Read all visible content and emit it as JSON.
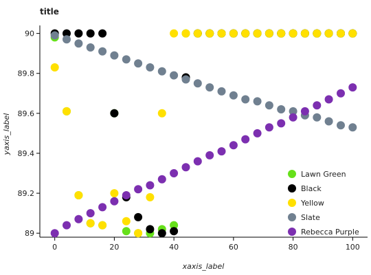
{
  "chart_data": {
    "type": "scatter",
    "title": "title",
    "xlabel": "xaxis_label",
    "ylabel": "yaxis_label",
    "xlim": [
      -5,
      105
    ],
    "ylim": [
      88.98,
      90.04
    ],
    "x_ticks": [
      0,
      20,
      40,
      60,
      80,
      100
    ],
    "x_tick_labels": [
      "0",
      "20",
      "40",
      "60",
      "80",
      "100"
    ],
    "y_ticks": [
      89.0,
      89.2,
      89.4,
      89.6,
      89.8,
      90.0
    ],
    "y_tick_labels": [
      "89",
      "89.2",
      "89.4",
      "89.6",
      "89.8",
      "90"
    ],
    "grid": false,
    "legend_position": "bottom-right",
    "series": [
      {
        "name": "Lawn Green",
        "color": "#66e01a",
        "points": [
          [
            0,
            89.98
          ],
          [
            4,
            89.61
          ],
          [
            8,
            89.19
          ],
          [
            12,
            89.05
          ],
          [
            16,
            89.04
          ],
          [
            20,
            89.6
          ],
          [
            24,
            89.01
          ],
          [
            28,
            89.0
          ],
          [
            32,
            89.0
          ],
          [
            36,
            89.02
          ],
          [
            40,
            89.04
          ],
          [
            44,
            90.0
          ],
          [
            48,
            90.0
          ],
          [
            52,
            90.0
          ],
          [
            56,
            90.0
          ],
          [
            60,
            90.0
          ],
          [
            64,
            90.0
          ],
          [
            68,
            90.0
          ],
          [
            72,
            90.0
          ],
          [
            76,
            90.0
          ],
          [
            80,
            90.0
          ],
          [
            84,
            90.0
          ],
          [
            88,
            90.0
          ],
          [
            92,
            90.0
          ],
          [
            96,
            90.0
          ],
          [
            100,
            90.0
          ]
        ]
      },
      {
        "name": "Black",
        "color": "#000000",
        "points": [
          [
            0,
            90.0
          ],
          [
            4,
            90.0
          ],
          [
            8,
            90.0
          ],
          [
            12,
            90.0
          ],
          [
            16,
            90.0
          ],
          [
            20,
            89.6
          ],
          [
            24,
            89.18
          ],
          [
            28,
            89.08
          ],
          [
            32,
            89.02
          ],
          [
            36,
            89.0
          ],
          [
            40,
            89.01
          ],
          [
            44,
            89.78
          ],
          [
            48,
            90.0
          ],
          [
            52,
            90.0
          ],
          [
            56,
            90.0
          ],
          [
            60,
            90.0
          ],
          [
            64,
            90.0
          ],
          [
            68,
            90.0
          ],
          [
            72,
            90.0
          ],
          [
            76,
            90.0
          ],
          [
            80,
            90.0
          ],
          [
            84,
            90.0
          ],
          [
            88,
            90.0
          ],
          [
            92,
            90.0
          ],
          [
            96,
            90.0
          ],
          [
            100,
            90.0
          ]
        ]
      },
      {
        "name": "Yellow",
        "color": "#ffe000",
        "points": [
          [
            0,
            89.83
          ],
          [
            4,
            89.61
          ],
          [
            8,
            89.19
          ],
          [
            12,
            89.05
          ],
          [
            16,
            89.04
          ],
          [
            20,
            89.2
          ],
          [
            24,
            89.06
          ],
          [
            28,
            89.0
          ],
          [
            32,
            89.18
          ],
          [
            36,
            89.6
          ],
          [
            40,
            90.0
          ],
          [
            44,
            90.0
          ],
          [
            48,
            90.0
          ],
          [
            52,
            90.0
          ],
          [
            56,
            90.0
          ],
          [
            60,
            90.0
          ],
          [
            64,
            90.0
          ],
          [
            68,
            90.0
          ],
          [
            72,
            90.0
          ],
          [
            76,
            90.0
          ],
          [
            80,
            90.0
          ],
          [
            84,
            90.0
          ],
          [
            88,
            90.0
          ],
          [
            92,
            90.0
          ],
          [
            96,
            90.0
          ],
          [
            100,
            90.0
          ]
        ]
      },
      {
        "name": "Slate",
        "color": "#708090",
        "points": [
          [
            0,
            89.99
          ],
          [
            4,
            89.97
          ],
          [
            8,
            89.95
          ],
          [
            12,
            89.93
          ],
          [
            16,
            89.91
          ],
          [
            20,
            89.89
          ],
          [
            24,
            89.87
          ],
          [
            28,
            89.85
          ],
          [
            32,
            89.83
          ],
          [
            36,
            89.81
          ],
          [
            40,
            89.79
          ],
          [
            44,
            89.77
          ],
          [
            48,
            89.75
          ],
          [
            52,
            89.73
          ],
          [
            56,
            89.71
          ],
          [
            60,
            89.69
          ],
          [
            64,
            89.67
          ],
          [
            68,
            89.66
          ],
          [
            72,
            89.64
          ],
          [
            76,
            89.62
          ],
          [
            80,
            89.61
          ],
          [
            84,
            89.59
          ],
          [
            88,
            89.58
          ],
          [
            92,
            89.56
          ],
          [
            96,
            89.54
          ],
          [
            100,
            89.53
          ]
        ]
      },
      {
        "name": "Rebecca Purple",
        "color": "#7c2fb0",
        "points": [
          [
            0,
            89.0
          ],
          [
            4,
            89.04
          ],
          [
            8,
            89.07
          ],
          [
            12,
            89.1
          ],
          [
            16,
            89.13
          ],
          [
            20,
            89.16
          ],
          [
            24,
            89.19
          ],
          [
            28,
            89.22
          ],
          [
            32,
            89.24
          ],
          [
            36,
            89.27
          ],
          [
            40,
            89.3
          ],
          [
            44,
            89.33
          ],
          [
            48,
            89.36
          ],
          [
            52,
            89.39
          ],
          [
            56,
            89.41
          ],
          [
            60,
            89.44
          ],
          [
            64,
            89.47
          ],
          [
            68,
            89.5
          ],
          [
            72,
            89.53
          ],
          [
            76,
            89.55
          ],
          [
            80,
            89.58
          ],
          [
            84,
            89.61
          ],
          [
            88,
            89.64
          ],
          [
            92,
            89.67
          ],
          [
            96,
            89.7
          ],
          [
            100,
            89.73
          ]
        ]
      }
    ]
  }
}
